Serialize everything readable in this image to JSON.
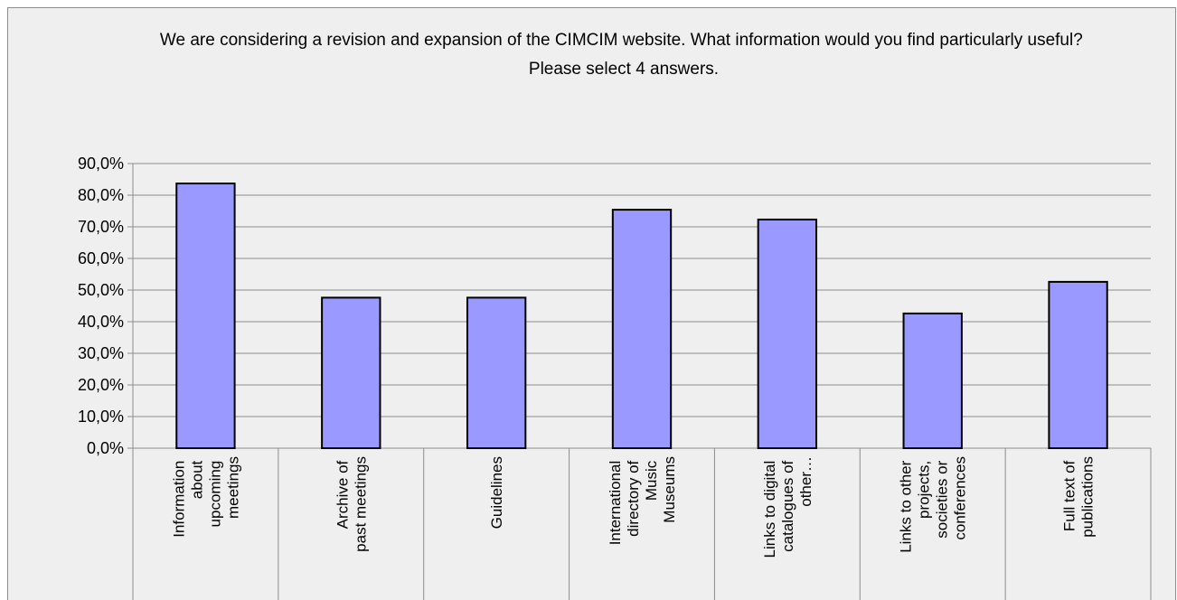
{
  "chart_data": {
    "type": "bar",
    "title": "We are considering a revision and expansion of the CIMCIM website. What information would you find particularly useful? Please select 4 answers.",
    "categories": [
      "Information about upcoming meetings",
      "Archive of past meetings",
      "Guidelines",
      "International directory of Music Museums",
      "Links to digital catalogues of other…",
      "Links to other projects, societies or conferences",
      "Full text of publications"
    ],
    "values": [
      83.7,
      47.6,
      47.6,
      75.4,
      72.3,
      42.6,
      52.6
    ],
    "color": "#9999ff",
    "ylim": [
      0,
      90
    ],
    "yticks": [
      {
        "value": 0,
        "label": "0,0%"
      },
      {
        "value": 10,
        "label": "10,0%"
      },
      {
        "value": 20,
        "label": "20,0%"
      },
      {
        "value": 30,
        "label": "30,0%"
      },
      {
        "value": 40,
        "label": "40,0%"
      },
      {
        "value": 50,
        "label": "50,0%"
      },
      {
        "value": 60,
        "label": "60,0%"
      },
      {
        "value": 70,
        "label": "70,0%"
      },
      {
        "value": 80,
        "label": "80,0%"
      },
      {
        "value": 90,
        "label": "90,0%"
      }
    ],
    "grid": true
  }
}
